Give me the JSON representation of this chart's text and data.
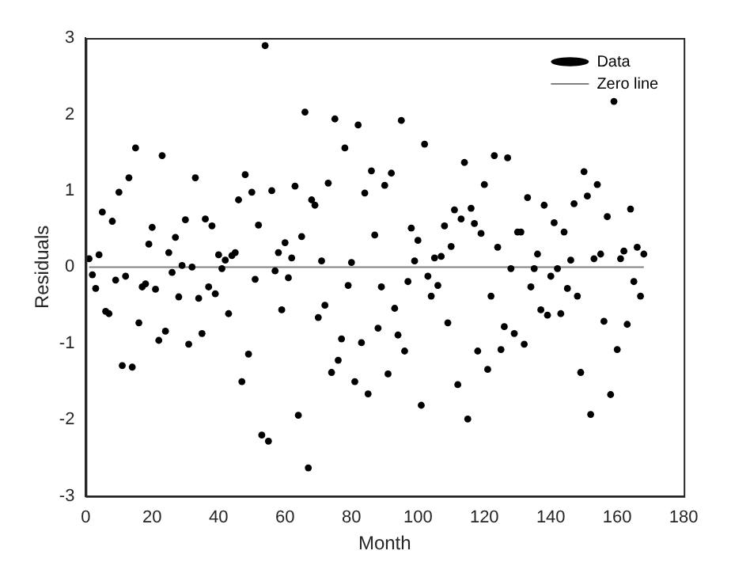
{
  "chart_data": {
    "type": "scatter",
    "xlabel": "Month",
    "ylabel": "Residuals",
    "xlim": [
      0,
      180
    ],
    "xticks": [
      0,
      20,
      40,
      60,
      80,
      100,
      120,
      140,
      160,
      180
    ],
    "ylim": [
      -3,
      3
    ],
    "yticks": [
      -3,
      -2,
      -1,
      0,
      1,
      2,
      3
    ],
    "grid": false,
    "legend": "top right",
    "marker": "circle",
    "series": [
      {
        "name": "Data",
        "color": "#000000",
        "x": [
          1,
          2,
          3,
          4,
          5,
          6,
          7,
          8,
          9,
          10,
          11,
          12,
          13,
          14,
          15,
          16,
          17,
          18,
          19,
          20,
          21,
          22,
          23,
          24,
          25,
          26,
          27,
          28,
          29,
          30,
          31,
          32,
          33,
          34,
          35,
          36,
          37,
          38,
          39,
          40,
          41,
          42,
          43,
          44,
          45,
          46,
          47,
          48,
          49,
          50,
          51,
          52,
          53,
          54,
          55,
          56,
          57,
          58,
          59,
          60,
          61,
          62,
          63,
          64,
          65,
          66,
          67,
          68,
          69,
          70,
          71,
          72,
          73,
          74,
          75,
          76,
          77,
          78,
          79,
          80,
          81,
          82,
          83,
          84,
          85,
          86,
          87,
          88,
          89,
          90,
          91,
          92,
          93,
          94,
          95,
          96,
          97,
          98,
          99,
          100,
          101,
          102,
          103,
          104,
          105,
          106,
          107,
          108,
          109,
          110,
          111,
          112,
          113,
          114,
          115,
          116,
          117,
          118,
          119,
          120,
          121,
          122,
          123,
          124,
          125,
          126,
          127,
          128,
          129,
          130,
          131,
          132,
          133,
          134,
          135,
          136,
          137,
          138,
          139,
          140,
          141,
          142,
          143,
          144,
          145,
          146,
          147,
          148,
          149,
          150,
          151,
          152,
          153,
          154,
          155,
          156,
          157,
          158,
          159,
          160,
          161,
          162,
          163,
          164,
          165,
          166,
          167,
          168
        ],
        "values": [
          0.11,
          -0.1,
          -0.28,
          0.16,
          0.72,
          -0.58,
          -0.61,
          0.6,
          -0.17,
          0.98,
          -1.29,
          -0.12,
          1.17,
          -1.31,
          1.56,
          -0.73,
          -0.26,
          -0.22,
          0.3,
          0.52,
          -0.29,
          -0.96,
          1.46,
          -0.84,
          0.19,
          -0.07,
          0.39,
          -0.39,
          0.02,
          0.62,
          -1.01,
          0,
          1.17,
          -0.41,
          -0.87,
          0.63,
          -0.26,
          0.54,
          -0.35,
          0.16,
          -0.02,
          0.09,
          -0.61,
          0.15,
          0.19,
          0.88,
          -1.5,
          1.21,
          -1.14,
          0.98,
          -0.16,
          0.55,
          -2.2,
          2.9,
          -2.28,
          1,
          -0.05,
          0.19,
          -0.56,
          0.32,
          -0.14,
          0.12,
          1.06,
          -1.94,
          0.4,
          2.03,
          -2.63,
          0.88,
          0.81,
          -0.66,
          0.08,
          -0.5,
          1.1,
          -1.38,
          1.94,
          -1.22,
          -0.94,
          1.56,
          -0.24,
          0.06,
          -1.5,
          1.86,
          -0.99,
          0.97,
          -1.66,
          1.26,
          0.42,
          -0.8,
          -0.26,
          1.07,
          -1.4,
          1.23,
          -0.54,
          -0.89,
          1.92,
          -1.1,
          -0.19,
          0.51,
          0.08,
          0.35,
          -1.81,
          1.61,
          -0.12,
          -0.38,
          0.12,
          -0.24,
          0.14,
          0.54,
          -0.73,
          0.27,
          0.75,
          -1.54,
          0.63,
          1.37,
          -1.99,
          0.77,
          0.57,
          -1.1,
          0.44,
          1.08,
          -1.34,
          -0.38,
          1.46,
          0.26,
          -1.08,
          -0.78,
          1.43,
          -0.02,
          -0.87,
          0.46,
          0.46,
          -1.01,
          0.91,
          -0.26,
          -0.02,
          0.17,
          -0.56,
          0.81,
          -0.63,
          -0.12,
          0.58,
          -0.02,
          -0.61,
          0.46,
          -0.28,
          0.09,
          0.83,
          -0.38,
          -1.38,
          1.25,
          0.93,
          -1.93,
          0.11,
          1.08,
          0.17,
          -0.71,
          0.66,
          -1.67,
          2.17,
          -1.08,
          0.11,
          0.21,
          -0.75,
          0.76,
          -0.19,
          0.26,
          -0.38,
          0.17
        ]
      },
      {
        "name": "Zero line",
        "type": "line",
        "color": "#808080",
        "x": [
          1,
          168
        ],
        "values": [
          0,
          0
        ],
        "marker": "none",
        "line_style": "solid"
      }
    ]
  }
}
